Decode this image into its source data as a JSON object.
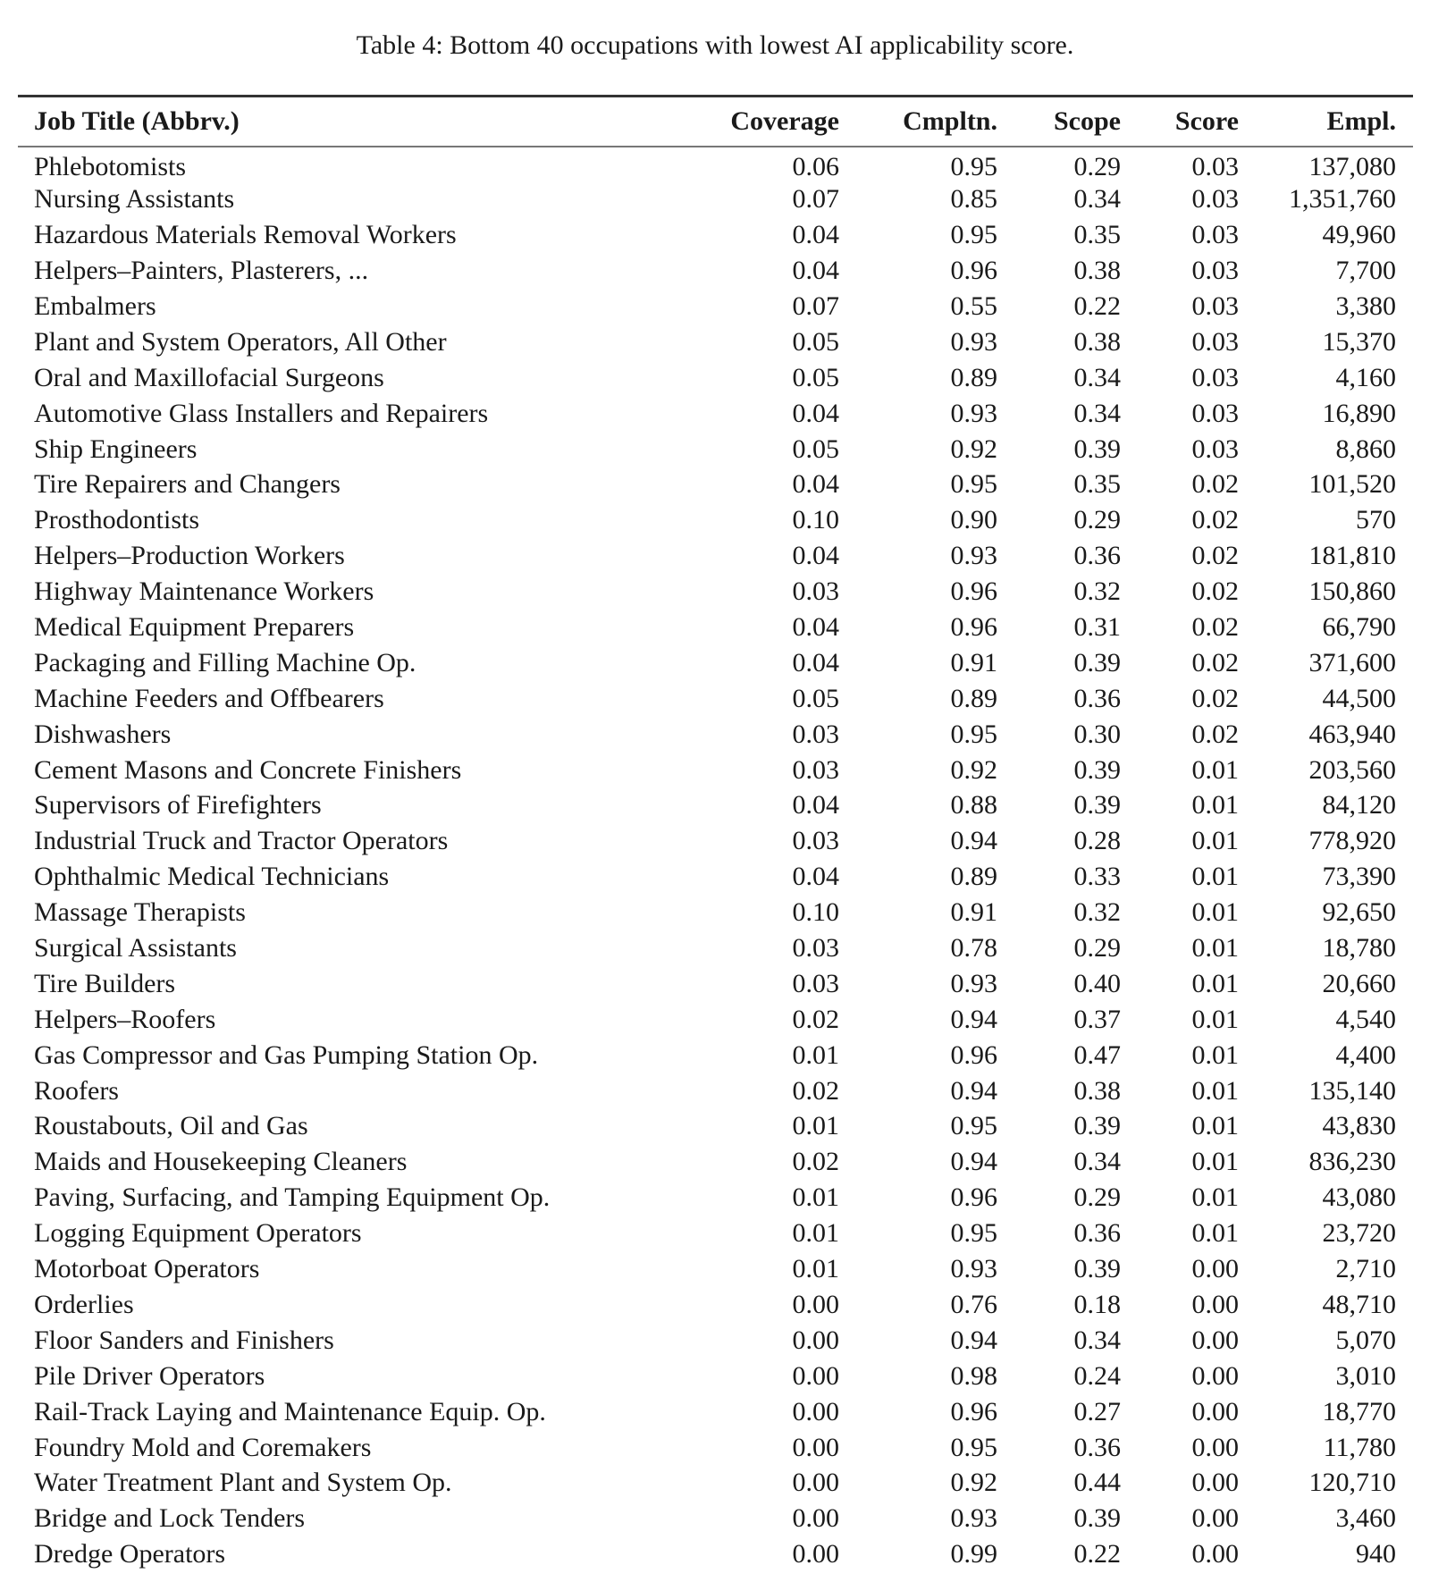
{
  "caption": "Table 4: Bottom 40 occupations with lowest AI applicability score.",
  "columns": [
    "Job Title (Abbrv.)",
    "Coverage",
    "Cmpltn.",
    "Scope",
    "Score",
    "Empl."
  ],
  "rows": [
    [
      "Phlebotomists",
      "0.06",
      "0.95",
      "0.29",
      "0.03",
      "137,080"
    ],
    [
      "Nursing Assistants",
      "0.07",
      "0.85",
      "0.34",
      "0.03",
      "1,351,760"
    ],
    [
      "Hazardous Materials Removal Workers",
      "0.04",
      "0.95",
      "0.35",
      "0.03",
      "49,960"
    ],
    [
      "Helpers–Painters, Plasterers, ...",
      "0.04",
      "0.96",
      "0.38",
      "0.03",
      "7,700"
    ],
    [
      "Embalmers",
      "0.07",
      "0.55",
      "0.22",
      "0.03",
      "3,380"
    ],
    [
      "Plant and System Operators, All Other",
      "0.05",
      "0.93",
      "0.38",
      "0.03",
      "15,370"
    ],
    [
      "Oral and Maxillofacial Surgeons",
      "0.05",
      "0.89",
      "0.34",
      "0.03",
      "4,160"
    ],
    [
      "Automotive Glass Installers and Repairers",
      "0.04",
      "0.93",
      "0.34",
      "0.03",
      "16,890"
    ],
    [
      "Ship Engineers",
      "0.05",
      "0.92",
      "0.39",
      "0.03",
      "8,860"
    ],
    [
      "Tire Repairers and Changers",
      "0.04",
      "0.95",
      "0.35",
      "0.02",
      "101,520"
    ],
    [
      "Prosthodontists",
      "0.10",
      "0.90",
      "0.29",
      "0.02",
      "570"
    ],
    [
      "Helpers–Production Workers",
      "0.04",
      "0.93",
      "0.36",
      "0.02",
      "181,810"
    ],
    [
      "Highway Maintenance Workers",
      "0.03",
      "0.96",
      "0.32",
      "0.02",
      "150,860"
    ],
    [
      "Medical Equipment Preparers",
      "0.04",
      "0.96",
      "0.31",
      "0.02",
      "66,790"
    ],
    [
      "Packaging and Filling Machine Op.",
      "0.04",
      "0.91",
      "0.39",
      "0.02",
      "371,600"
    ],
    [
      "Machine Feeders and Offbearers",
      "0.05",
      "0.89",
      "0.36",
      "0.02",
      "44,500"
    ],
    [
      "Dishwashers",
      "0.03",
      "0.95",
      "0.30",
      "0.02",
      "463,940"
    ],
    [
      "Cement Masons and Concrete Finishers",
      "0.03",
      "0.92",
      "0.39",
      "0.01",
      "203,560"
    ],
    [
      "Supervisors of Firefighters",
      "0.04",
      "0.88",
      "0.39",
      "0.01",
      "84,120"
    ],
    [
      "Industrial Truck and Tractor Operators",
      "0.03",
      "0.94",
      "0.28",
      "0.01",
      "778,920"
    ],
    [
      "Ophthalmic Medical Technicians",
      "0.04",
      "0.89",
      "0.33",
      "0.01",
      "73,390"
    ],
    [
      "Massage Therapists",
      "0.10",
      "0.91",
      "0.32",
      "0.01",
      "92,650"
    ],
    [
      "Surgical Assistants",
      "0.03",
      "0.78",
      "0.29",
      "0.01",
      "18,780"
    ],
    [
      "Tire Builders",
      "0.03",
      "0.93",
      "0.40",
      "0.01",
      "20,660"
    ],
    [
      "Helpers–Roofers",
      "0.02",
      "0.94",
      "0.37",
      "0.01",
      "4,540"
    ],
    [
      "Gas Compressor and Gas Pumping Station Op.",
      "0.01",
      "0.96",
      "0.47",
      "0.01",
      "4,400"
    ],
    [
      "Roofers",
      "0.02",
      "0.94",
      "0.38",
      "0.01",
      "135,140"
    ],
    [
      "Roustabouts, Oil and Gas",
      "0.01",
      "0.95",
      "0.39",
      "0.01",
      "43,830"
    ],
    [
      "Maids and Housekeeping Cleaners",
      "0.02",
      "0.94",
      "0.34",
      "0.01",
      "836,230"
    ],
    [
      "Paving, Surfacing, and Tamping Equipment Op.",
      "0.01",
      "0.96",
      "0.29",
      "0.01",
      "43,080"
    ],
    [
      "Logging Equipment Operators",
      "0.01",
      "0.95",
      "0.36",
      "0.01",
      "23,720"
    ],
    [
      "Motorboat Operators",
      "0.01",
      "0.93",
      "0.39",
      "0.00",
      "2,710"
    ],
    [
      "Orderlies",
      "0.00",
      "0.76",
      "0.18",
      "0.00",
      "48,710"
    ],
    [
      "Floor Sanders and Finishers",
      "0.00",
      "0.94",
      "0.34",
      "0.00",
      "5,070"
    ],
    [
      "Pile Driver Operators",
      "0.00",
      "0.98",
      "0.24",
      "0.00",
      "3,010"
    ],
    [
      "Rail-Track Laying and Maintenance Equip. Op.",
      "0.00",
      "0.96",
      "0.27",
      "0.00",
      "18,770"
    ],
    [
      "Foundry Mold and Coremakers",
      "0.00",
      "0.95",
      "0.36",
      "0.00",
      "11,780"
    ],
    [
      "Water Treatment Plant and System Op.",
      "0.00",
      "0.92",
      "0.44",
      "0.00",
      "120,710"
    ],
    [
      "Bridge and Lock Tenders",
      "0.00",
      "0.93",
      "0.39",
      "0.00",
      "3,460"
    ],
    [
      "Dredge Operators",
      "0.00",
      "0.99",
      "0.22",
      "0.00",
      "940"
    ]
  ]
}
